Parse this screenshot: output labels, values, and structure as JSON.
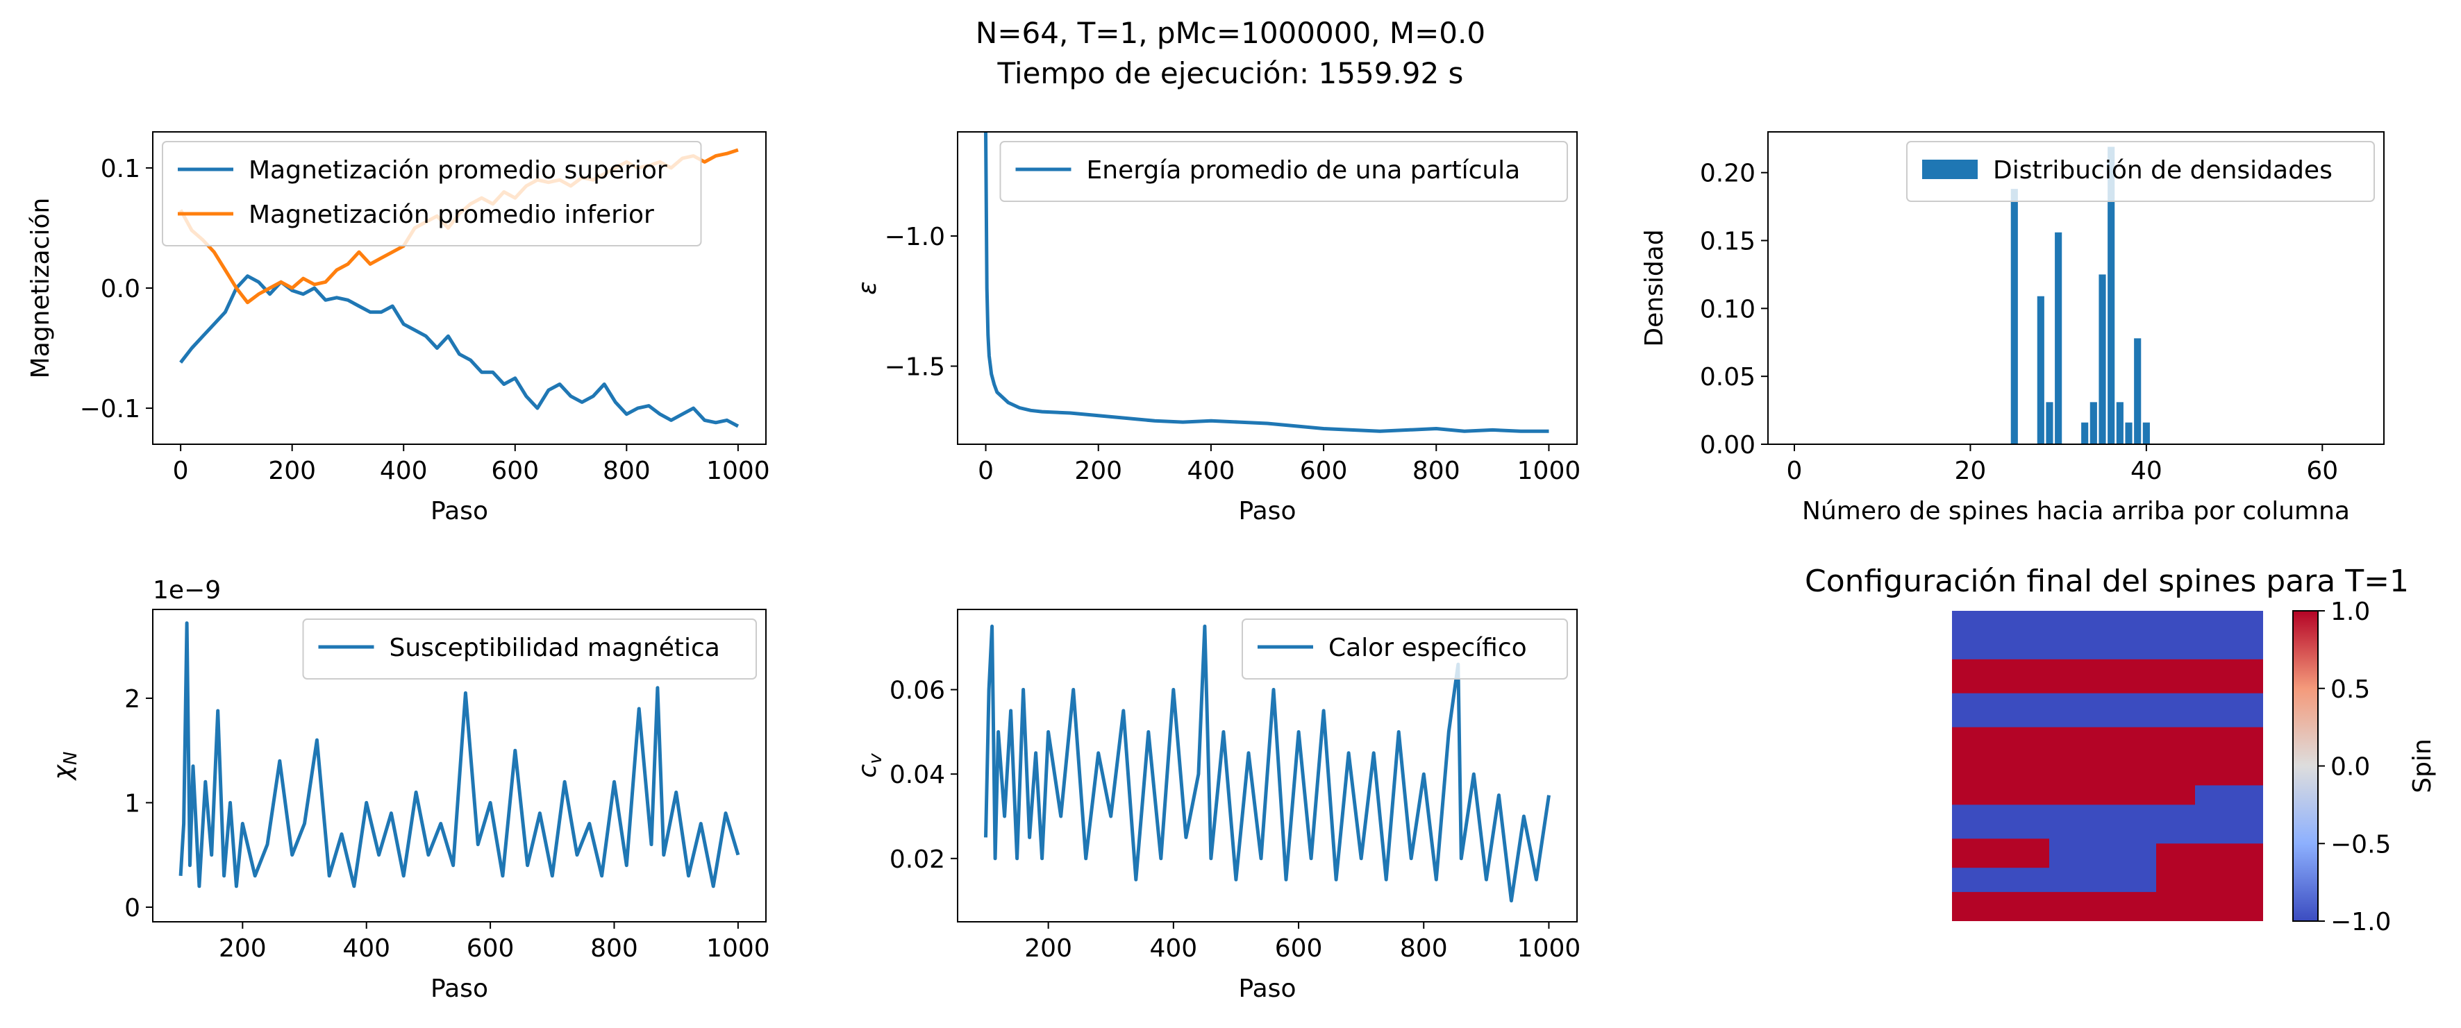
{
  "figure": {
    "title_line1": "N=64, T=1, pMc=1000000, M=0.0",
    "title_line2": "Tiempo de ejecución: 1559.92 s"
  },
  "colors": {
    "blue": "#1f77b4",
    "orange": "#ff7f0e",
    "spin_up": "#b40426",
    "spin_down": "#3b4cc0"
  },
  "chart_data": [
    {
      "id": "magnetization",
      "type": "line",
      "xlabel": "Paso",
      "ylabel": "Magnetización",
      "xlim": [
        -50,
        1050
      ],
      "ylim": [
        -0.13,
        0.13
      ],
      "xticks": [
        0,
        200,
        400,
        600,
        800,
        1000
      ],
      "yticks": [
        -0.1,
        0.0,
        0.1
      ],
      "ytick_labels": [
        "−0.1",
        "0.0",
        "0.1"
      ],
      "legend_position": "upper-left",
      "series": [
        {
          "name": "Magnetización promedio superior",
          "color": "#1f77b4",
          "x": [
            0,
            20,
            40,
            60,
            80,
            100,
            120,
            140,
            160,
            180,
            200,
            220,
            240,
            260,
            280,
            300,
            320,
            340,
            360,
            380,
            400,
            420,
            440,
            460,
            480,
            500,
            520,
            540,
            560,
            580,
            600,
            620,
            640,
            660,
            680,
            700,
            720,
            740,
            760,
            780,
            800,
            820,
            840,
            860,
            880,
            900,
            920,
            940,
            960,
            980,
            1000
          ],
          "y": [
            -0.062,
            -0.05,
            -0.04,
            -0.03,
            -0.02,
            0.0,
            0.01,
            0.005,
            -0.005,
            0.005,
            -0.002,
            -0.005,
            0.0,
            -0.01,
            -0.008,
            -0.01,
            -0.015,
            -0.02,
            -0.02,
            -0.015,
            -0.03,
            -0.035,
            -0.04,
            -0.05,
            -0.04,
            -0.055,
            -0.06,
            -0.07,
            -0.07,
            -0.08,
            -0.075,
            -0.09,
            -0.1,
            -0.085,
            -0.08,
            -0.09,
            -0.095,
            -0.09,
            -0.08,
            -0.095,
            -0.105,
            -0.1,
            -0.098,
            -0.105,
            -0.11,
            -0.105,
            -0.1,
            -0.11,
            -0.112,
            -0.11,
            -0.115
          ]
        },
        {
          "name": "Magnetización promedio inferior",
          "color": "#ff7f0e",
          "x": [
            0,
            20,
            40,
            60,
            80,
            100,
            120,
            140,
            160,
            180,
            200,
            220,
            240,
            260,
            280,
            300,
            320,
            340,
            360,
            380,
            400,
            420,
            440,
            460,
            480,
            500,
            520,
            540,
            560,
            580,
            600,
            620,
            640,
            660,
            680,
            700,
            720,
            740,
            760,
            780,
            800,
            820,
            840,
            860,
            880,
            900,
            920,
            940,
            960,
            980,
            1000
          ],
          "y": [
            0.065,
            0.048,
            0.04,
            0.03,
            0.015,
            0.0,
            -0.012,
            -0.005,
            0.0,
            0.005,
            0.0,
            0.008,
            0.003,
            0.005,
            0.015,
            0.02,
            0.03,
            0.02,
            0.025,
            0.03,
            0.035,
            0.05,
            0.055,
            0.06,
            0.05,
            0.062,
            0.07,
            0.075,
            0.07,
            0.08,
            0.075,
            0.085,
            0.09,
            0.088,
            0.09,
            0.085,
            0.092,
            0.09,
            0.095,
            0.1,
            0.105,
            0.1,
            0.102,
            0.105,
            0.1,
            0.108,
            0.11,
            0.105,
            0.11,
            0.112,
            0.115
          ]
        }
      ]
    },
    {
      "id": "energy",
      "type": "line",
      "xlabel": "Paso",
      "ylabel": "ε",
      "xlim": [
        -50,
        1050
      ],
      "ylim": [
        -1.8,
        -0.6
      ],
      "xticks": [
        0,
        200,
        400,
        600,
        800,
        1000
      ],
      "yticks": [
        -1.5,
        -1.0
      ],
      "ytick_labels": [
        "−1.5",
        "−1.0"
      ],
      "legend_position": "upper-right",
      "series": [
        {
          "name": "Energía promedio de una partícula",
          "color": "#1f77b4",
          "x": [
            0,
            2,
            4,
            6,
            10,
            15,
            20,
            30,
            40,
            60,
            80,
            100,
            150,
            200,
            250,
            300,
            350,
            400,
            450,
            500,
            550,
            600,
            650,
            700,
            750,
            800,
            850,
            900,
            950,
            1000
          ],
          "y": [
            -0.6,
            -1.2,
            -1.38,
            -1.46,
            -1.53,
            -1.57,
            -1.6,
            -1.62,
            -1.64,
            -1.66,
            -1.67,
            -1.675,
            -1.68,
            -1.69,
            -1.7,
            -1.71,
            -1.715,
            -1.71,
            -1.715,
            -1.72,
            -1.73,
            -1.74,
            -1.745,
            -1.75,
            -1.745,
            -1.74,
            -1.75,
            -1.745,
            -1.75,
            -1.75
          ]
        }
      ]
    },
    {
      "id": "density",
      "type": "bar",
      "xlabel": "Número de spines hacia arriba por columna",
      "ylabel": "Densidad",
      "xlim": [
        -3,
        67
      ],
      "ylim": [
        0,
        0.23
      ],
      "xticks": [
        0,
        20,
        40,
        60
      ],
      "yticks": [
        0.0,
        0.05,
        0.1,
        0.15,
        0.2
      ],
      "ytick_labels": [
        "0.00",
        "0.05",
        "0.10",
        "0.15",
        "0.20"
      ],
      "legend_position": "upper-right",
      "series": [
        {
          "name": "Distribución de densidades",
          "color": "#1f77b4",
          "x": [
            25,
            28,
            29,
            30,
            33,
            34,
            35,
            36,
            37,
            38,
            39,
            40
          ],
          "y": [
            0.188,
            0.109,
            0.031,
            0.156,
            0.016,
            0.031,
            0.125,
            0.219,
            0.031,
            0.016,
            0.078,
            0.016
          ]
        }
      ]
    },
    {
      "id": "susceptibility",
      "type": "line",
      "xlabel": "Paso",
      "ylabel": "χ_N",
      "y_offset_text": "1e−9",
      "xlim": [
        55,
        1045
      ],
      "ylim": [
        -0.14,
        2.85
      ],
      "xticks": [
        200,
        400,
        600,
        800,
        1000
      ],
      "yticks": [
        0,
        1,
        2
      ],
      "legend_position": "upper-right",
      "series": [
        {
          "name": "Susceptibilidad magnética",
          "color": "#1f77b4",
          "x": [
            100,
            105,
            110,
            115,
            120,
            130,
            140,
            150,
            160,
            170,
            180,
            190,
            200,
            220,
            240,
            260,
            280,
            300,
            320,
            340,
            360,
            380,
            400,
            420,
            440,
            460,
            480,
            500,
            520,
            540,
            560,
            580,
            600,
            620,
            640,
            660,
            680,
            700,
            720,
            740,
            760,
            780,
            800,
            820,
            840,
            860,
            870,
            880,
            900,
            920,
            940,
            960,
            980,
            1000
          ],
          "y": [
            0.3,
            0.8,
            2.72,
            0.4,
            1.35,
            0.2,
            1.2,
            0.5,
            1.88,
            0.3,
            1.0,
            0.2,
            0.8,
            0.3,
            0.6,
            1.4,
            0.5,
            0.8,
            1.6,
            0.3,
            0.7,
            0.2,
            1.0,
            0.5,
            0.9,
            0.3,
            1.1,
            0.5,
            0.8,
            0.4,
            2.05,
            0.6,
            1.0,
            0.3,
            1.5,
            0.4,
            0.9,
            0.3,
            1.2,
            0.5,
            0.8,
            0.3,
            1.2,
            0.4,
            1.9,
            0.6,
            2.1,
            0.5,
            1.1,
            0.3,
            0.8,
            0.2,
            0.9,
            0.5
          ]
        }
      ]
    },
    {
      "id": "specific_heat",
      "type": "line",
      "xlabel": "Paso",
      "ylabel": "c_v",
      "xlim": [
        55,
        1045
      ],
      "ylim": [
        0.005,
        0.079
      ],
      "xticks": [
        200,
        400,
        600,
        800,
        1000
      ],
      "yticks": [
        0.02,
        0.04,
        0.06
      ],
      "ytick_labels": [
        "0.02",
        "0.04",
        "0.06"
      ],
      "legend_position": "upper-right",
      "series": [
        {
          "name": "Calor específico",
          "color": "#1f77b4",
          "x": [
            100,
            105,
            110,
            115,
            120,
            130,
            140,
            150,
            160,
            170,
            180,
            190,
            200,
            220,
            240,
            260,
            280,
            300,
            320,
            340,
            360,
            380,
            400,
            420,
            440,
            450,
            460,
            480,
            500,
            520,
            540,
            560,
            580,
            600,
            620,
            640,
            660,
            680,
            700,
            720,
            740,
            760,
            780,
            800,
            820,
            840,
            855,
            860,
            880,
            900,
            920,
            940,
            960,
            980,
            1000
          ],
          "y": [
            0.025,
            0.06,
            0.075,
            0.02,
            0.05,
            0.03,
            0.055,
            0.02,
            0.06,
            0.025,
            0.045,
            0.02,
            0.05,
            0.03,
            0.06,
            0.02,
            0.045,
            0.03,
            0.055,
            0.015,
            0.05,
            0.02,
            0.06,
            0.025,
            0.04,
            0.075,
            0.02,
            0.05,
            0.015,
            0.045,
            0.02,
            0.06,
            0.015,
            0.05,
            0.02,
            0.055,
            0.015,
            0.045,
            0.02,
            0.045,
            0.015,
            0.05,
            0.02,
            0.04,
            0.015,
            0.05,
            0.066,
            0.02,
            0.04,
            0.015,
            0.035,
            0.01,
            0.03,
            0.015,
            0.035
          ]
        }
      ]
    },
    {
      "id": "spin_config",
      "type": "heatmap",
      "title": "Configuración final del spines para T=1",
      "colorbar_label": "Spin",
      "clim": [
        -1.0,
        1.0
      ],
      "colorbar_ticks": [
        -1.0,
        -0.5,
        0.0,
        0.5,
        1.0
      ],
      "colorbar_tick_labels": [
        "−1.0",
        "−0.5",
        "0.0",
        "0.5",
        "1.0"
      ],
      "colormap": "coolwarm",
      "rows": 64,
      "cols": 64,
      "up_regions_rows_cols": [
        [
          [
            10,
            17
          ],
          [
            0,
            64
          ]
        ],
        [
          [
            24,
            40
          ],
          [
            0,
            50
          ]
        ],
        [
          [
            24,
            36
          ],
          [
            50,
            64
          ]
        ],
        [
          [
            47,
            53
          ],
          [
            0,
            20
          ]
        ],
        [
          [
            48,
            64
          ],
          [
            42,
            64
          ]
        ],
        [
          [
            58,
            64
          ],
          [
            0,
            64
          ]
        ]
      ]
    }
  ]
}
